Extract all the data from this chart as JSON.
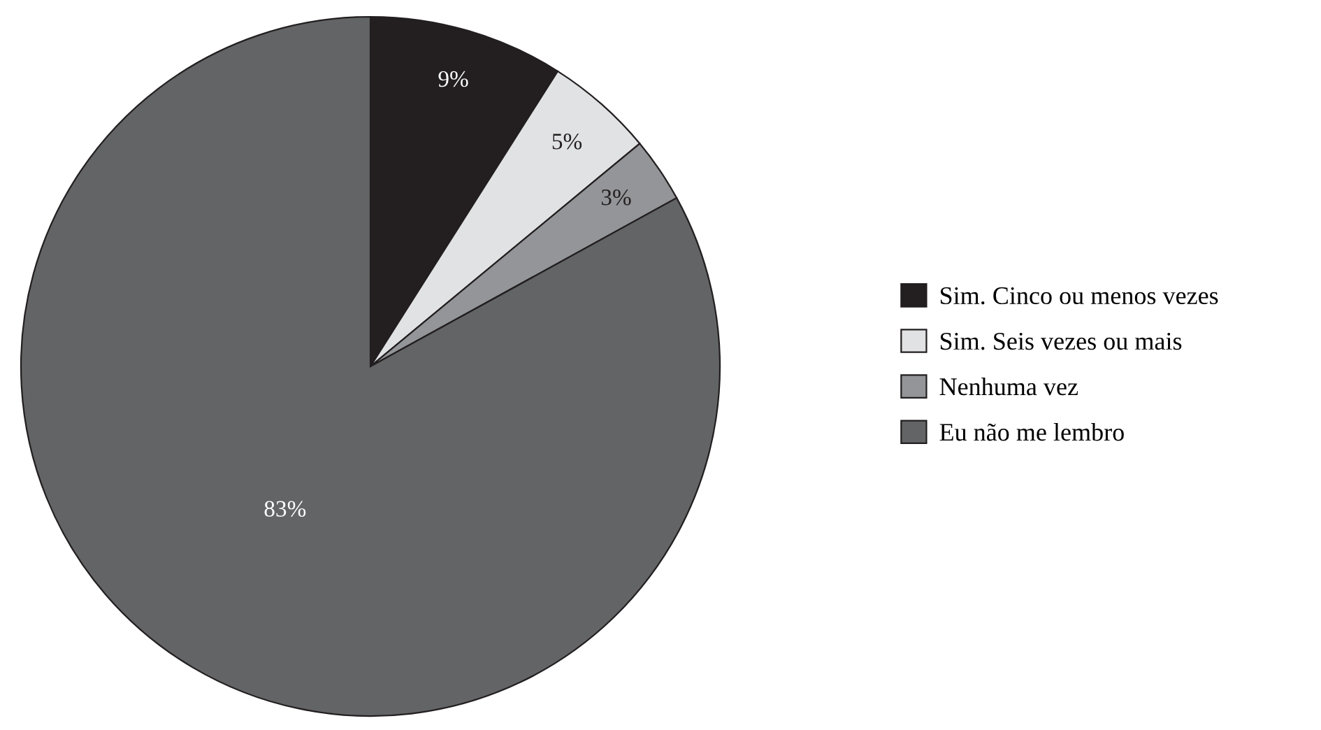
{
  "chart_data": {
    "type": "pie",
    "categories": [
      "Sim. Cinco ou menos vezes",
      "Sim. Seis vezes ou mais",
      "Nenhuma vez",
      "Eu não me lembro"
    ],
    "values": [
      9,
      5,
      3,
      83
    ],
    "colors": [
      "#231f20",
      "#e1e2e3",
      "#939598",
      "#636466"
    ],
    "value_labels": [
      "9%",
      "5%",
      "3%",
      "83%"
    ],
    "legend": "right"
  }
}
